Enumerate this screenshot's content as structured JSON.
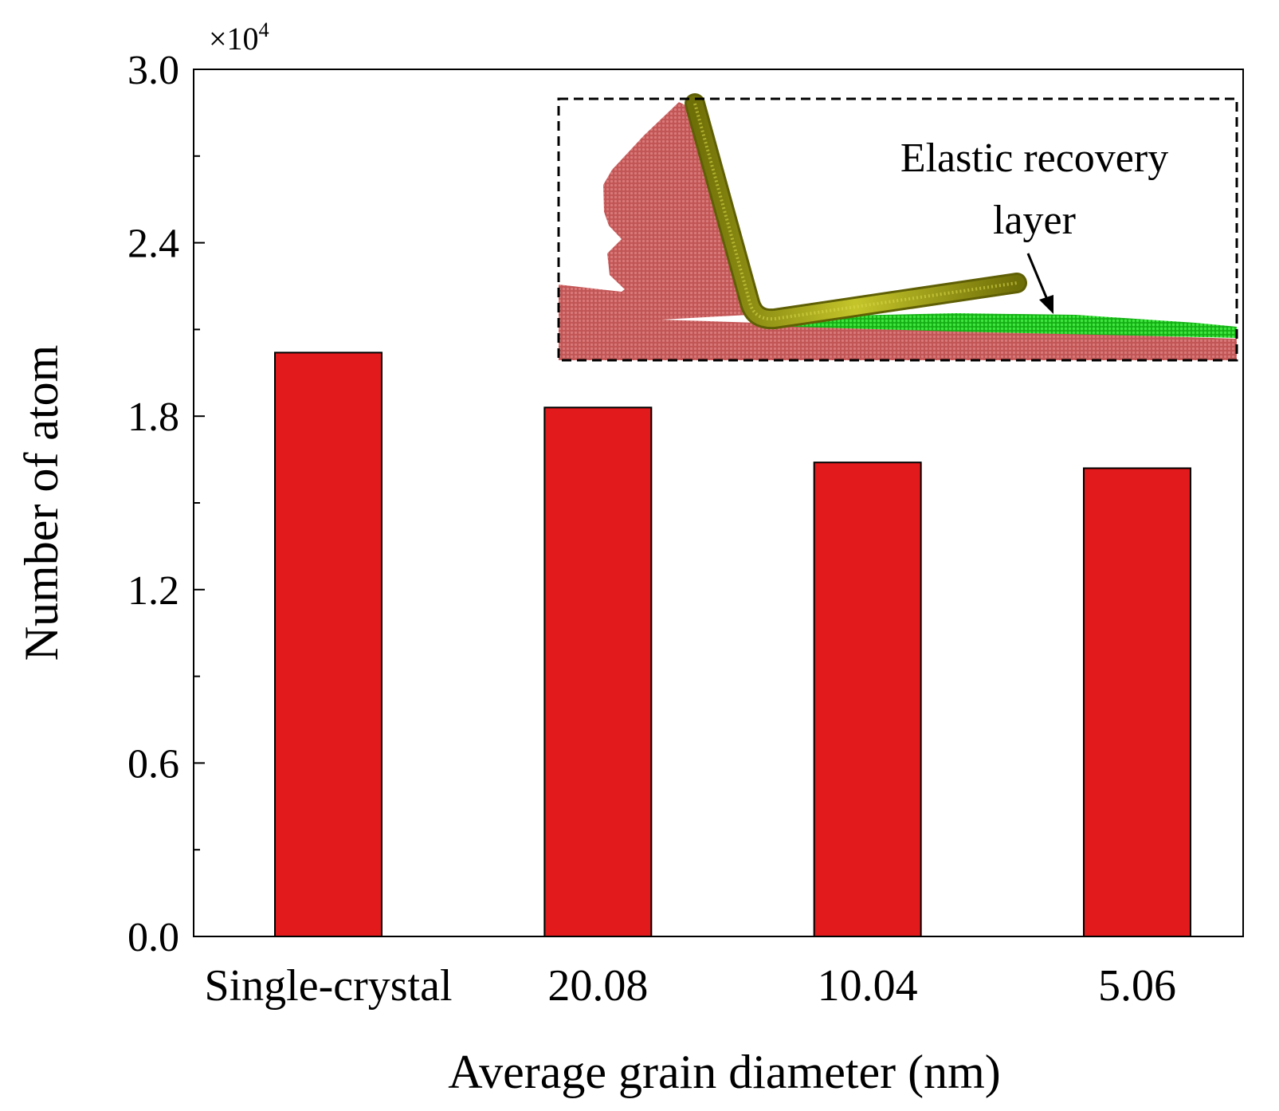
{
  "chart_data": {
    "type": "bar",
    "title": "",
    "xlabel": "Average grain diameter (nm)",
    "ylabel": "Number of atom",
    "multiplier_label": "×10",
    "multiplier_exponent": "4",
    "categories": [
      "Single-crystal",
      "20.08",
      "10.04",
      "5.06"
    ],
    "values": [
      2.02,
      1.83,
      1.64,
      1.62
    ],
    "value_scale": 10000,
    "ylim": [
      0,
      3.0
    ],
    "yticks": [
      "0.0",
      "0.6",
      "1.2",
      "1.8",
      "2.4",
      "3.0"
    ],
    "ytick_values": [
      0,
      0.6,
      1.2,
      1.8,
      2.4,
      3.0
    ],
    "grid": false,
    "bar_color": "#e31a1c",
    "inset": {
      "label_line1": "Elastic recovery",
      "label_line2": "layer",
      "substrate_color": "#c85a5a",
      "tool_color": "#9a9a12",
      "recovery_layer_color": "#22cc22"
    }
  }
}
